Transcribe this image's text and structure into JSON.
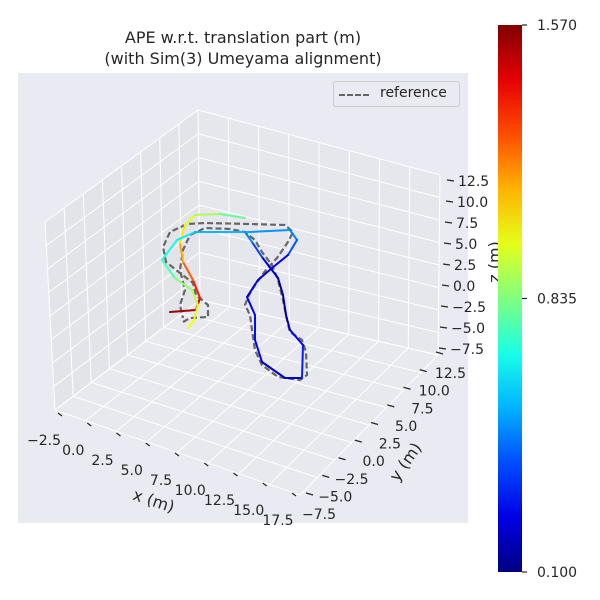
{
  "chart_data": {
    "type": "line",
    "projection": "3d",
    "title": "APE w.r.t. translation part (m)",
    "subtitle": "(with Sim(3) Umeyama alignment)",
    "xlabel": "x (m)",
    "ylabel": "y (m)",
    "zlabel": "z (m)",
    "x_ticks": [
      "−2.5",
      "0.0",
      "2.5",
      "5.0",
      "7.5",
      "10.0",
      "12.5",
      "15.0",
      "17.5"
    ],
    "y_ticks": [
      "−7.5",
      "−5.0",
      "−2.5",
      "0.0",
      "2.5",
      "5.0",
      "7.5",
      "10.0",
      "12.5"
    ],
    "z_ticks": [
      "12.5",
      "10.0",
      "7.5",
      "5.0",
      "2.5",
      "0.0",
      "−2.5",
      "−5.0",
      "−7.5"
    ],
    "xlim": [
      -2.5,
      17.5
    ],
    "ylim": [
      -7.5,
      12.5
    ],
    "zlim": [
      -7.5,
      12.5
    ],
    "grid": true,
    "legend": {
      "position": "top-right",
      "entries": [
        "reference"
      ]
    },
    "series": [
      {
        "name": "reference",
        "style": "dashed",
        "color": "#666666"
      },
      {
        "style": "solid",
        "colormap": "jet",
        "color_value": "APE"
      }
    ],
    "colorbar": {
      "min": 0.1,
      "max": 1.57,
      "ticks": [
        "1.570",
        "0.835",
        "0.100"
      ],
      "colormap": "jet"
    }
  },
  "colors": {
    "axes_bg": "#eaeaf2",
    "grid": "#ffffff",
    "reference": "#666666"
  }
}
